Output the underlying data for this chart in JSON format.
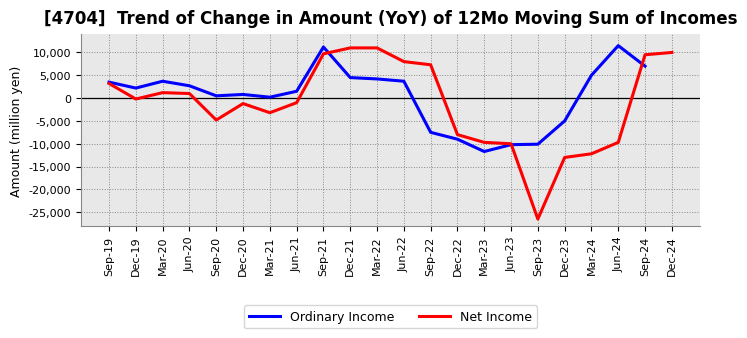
{
  "title": "[4704]  Trend of Change in Amount (YoY) of 12Mo Moving Sum of Incomes",
  "ylabel": "Amount (million yen)",
  "x_labels": [
    "Sep-19",
    "Dec-19",
    "Mar-20",
    "Jun-20",
    "Sep-20",
    "Dec-20",
    "Mar-21",
    "Jun-21",
    "Sep-21",
    "Dec-21",
    "Mar-22",
    "Jun-22",
    "Sep-22",
    "Dec-22",
    "Mar-23",
    "Jun-23",
    "Sep-23",
    "Dec-23",
    "Mar-24",
    "Jun-24",
    "Sep-24",
    "Dec-24"
  ],
  "ordinary_income": [
    3500,
    2200,
    3700,
    2700,
    500,
    800,
    200,
    1500,
    11200,
    4500,
    4200,
    3700,
    -7500,
    -9000,
    -11700,
    -10200,
    -10100,
    -5000,
    5000,
    11500,
    7000,
    null
  ],
  "net_income": [
    3200,
    -200,
    1200,
    1000,
    -4800,
    -1200,
    -3200,
    -1000,
    9700,
    11000,
    11000,
    8000,
    7300,
    -8000,
    -9700,
    -10000,
    -26500,
    -13000,
    -12200,
    -9700,
    9500,
    10000
  ],
  "ylim": [
    -28000,
    14000
  ],
  "yticks": [
    -25000,
    -20000,
    -15000,
    -10000,
    -5000,
    0,
    5000,
    10000
  ],
  "ordinary_income_color": "#0000FF",
  "net_income_color": "#FF0000",
  "bg_color": "#FFFFFF",
  "plot_bg_color": "#E8E8E8",
  "grid_color": "#888888",
  "line_width": 2.2,
  "title_fontsize": 12,
  "tick_fontsize": 8,
  "ylabel_fontsize": 9,
  "legend_labels": [
    "Ordinary Income",
    "Net Income"
  ]
}
